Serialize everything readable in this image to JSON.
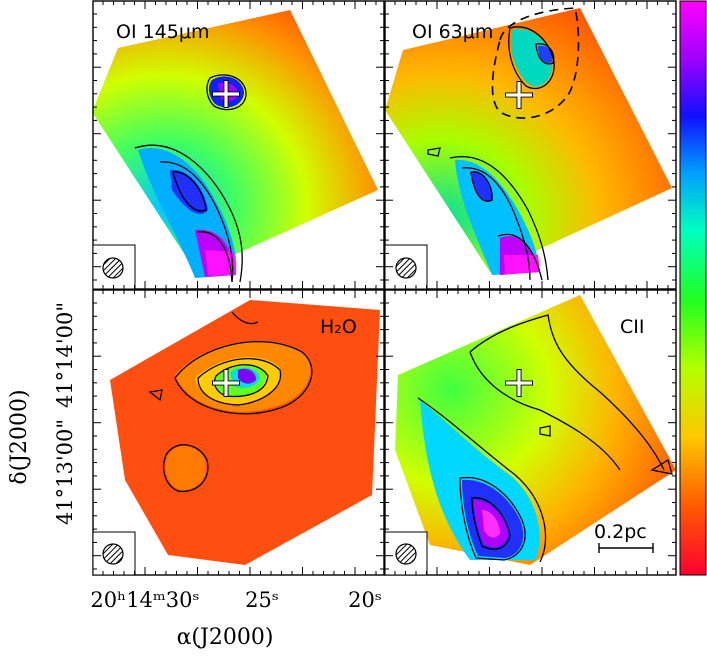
{
  "panels": [
    {
      "id": "oi145",
      "label": "OI 145μm"
    },
    {
      "id": "oi63",
      "label": "OI 63μm"
    },
    {
      "id": "h2o",
      "label": "H₂O"
    },
    {
      "id": "cii",
      "label": "CII"
    }
  ],
  "axes": {
    "y_label": "δ(J2000)",
    "y_ticks": [
      "41°14'00\"",
      "41°13'00\""
    ],
    "x_label": "α(J2000)",
    "x_ticks": [
      "20ʰ14ᵐ30ˢ",
      "25ˢ",
      "20ˢ"
    ]
  },
  "scalebar": {
    "label": "0.2pc"
  },
  "colorbar": {
    "colors": [
      "#ff0040",
      "#ff7a00",
      "#ffd200",
      "#a0ff00",
      "#00ff40",
      "#00ffd0",
      "#0080ff",
      "#2000ff",
      "#b000ff",
      "#ff00ff"
    ]
  }
}
